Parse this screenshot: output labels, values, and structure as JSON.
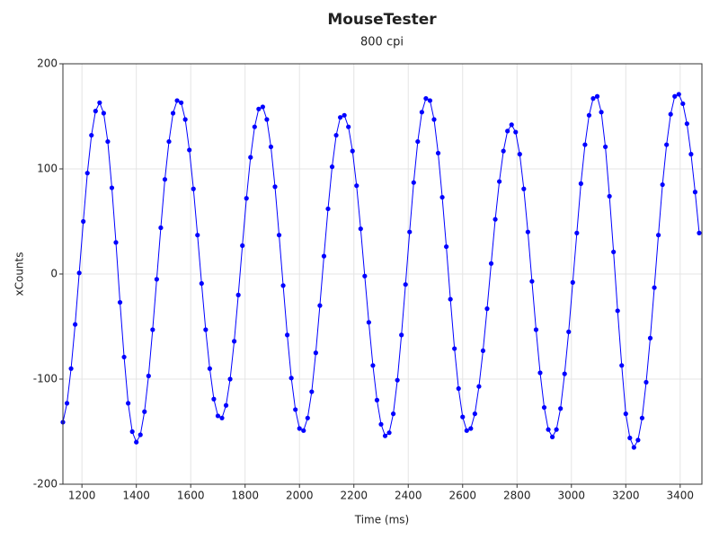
{
  "chart_data": {
    "type": "scatter",
    "title": "MouseTester",
    "subtitle": "800 cpi",
    "x_label": "Time (ms)",
    "y_label": "xCounts",
    "color": "#0000ff",
    "line": true,
    "grid": true,
    "xlim": [
      1130,
      3480
    ],
    "xticks": [
      1200,
      1400,
      1600,
      1800,
      2000,
      2200,
      2400,
      2600,
      2800,
      3000,
      3200,
      3400
    ],
    "ylim": [
      -200,
      200
    ],
    "yticks": [
      -200,
      -100,
      0,
      100,
      200
    ],
    "x": [
      1130,
      1145,
      1160,
      1175,
      1190,
      1205,
      1220,
      1235,
      1250,
      1265,
      1280,
      1295,
      1310,
      1325,
      1340,
      1355,
      1370,
      1385,
      1400,
      1415,
      1430,
      1445,
      1460,
      1475,
      1490,
      1505,
      1520,
      1535,
      1550,
      1565,
      1580,
      1595,
      1610,
      1625,
      1640,
      1655,
      1670,
      1685,
      1700,
      1715,
      1730,
      1745,
      1760,
      1775,
      1790,
      1805,
      1820,
      1835,
      1850,
      1865,
      1880,
      1895,
      1910,
      1925,
      1940,
      1955,
      1970,
      1985,
      2000,
      2015,
      2030,
      2045,
      2060,
      2075,
      2090,
      2105,
      2120,
      2135,
      2150,
      2165,
      2180,
      2195,
      2210,
      2225,
      2240,
      2255,
      2270,
      2285,
      2300,
      2315,
      2330,
      2345,
      2360,
      2375,
      2390,
      2405,
      2420,
      2435,
      2450,
      2465,
      2480,
      2495,
      2510,
      2525,
      2540,
      2555,
      2570,
      2585,
      2600,
      2615,
      2630,
      2645,
      2660,
      2675,
      2690,
      2705,
      2720,
      2735,
      2750,
      2765,
      2780,
      2795,
      2810,
      2825,
      2840,
      2855,
      2870,
      2885,
      2900,
      2915,
      2930,
      2945,
      2960,
      2975,
      2990,
      3005,
      3020,
      3035,
      3050,
      3065,
      3080,
      3095,
      3110,
      3125,
      3140,
      3155,
      3170,
      3185,
      3200,
      3215,
      3230,
      3245,
      3260,
      3275,
      3290,
      3305,
      3320,
      3335,
      3350,
      3365,
      3380,
      3395,
      3410,
      3425,
      3440,
      3455,
      3470
    ],
    "values": [
      -141,
      -123,
      -90,
      -48,
      1,
      50,
      96,
      132,
      155,
      163,
      153,
      126,
      82,
      30,
      -27,
      -79,
      -123,
      -150,
      -160,
      -153,
      -131,
      -97,
      -53,
      -5,
      44,
      90,
      126,
      153,
      165,
      163,
      147,
      118,
      81,
      37,
      -9,
      -53,
      -90,
      -119,
      -135,
      -137,
      -125,
      -100,
      -64,
      -20,
      27,
      72,
      111,
      140,
      157,
      159,
      147,
      121,
      83,
      37,
      -11,
      -58,
      -99,
      -129,
      -147,
      -149,
      -137,
      -112,
      -75,
      -30,
      17,
      62,
      102,
      132,
      149,
      151,
      140,
      117,
      84,
      43,
      -2,
      -46,
      -87,
      -120,
      -143,
      -154,
      -151,
      -133,
      -101,
      -58,
      -10,
      40,
      87,
      126,
      154,
      167,
      165,
      147,
      115,
      73,
      26,
      -24,
      -71,
      -109,
      -136,
      -149,
      -147,
      -133,
      -107,
      -73,
      -33,
      10,
      52,
      88,
      117,
      136,
      142,
      135,
      114,
      81,
      40,
      -7,
      -53,
      -94,
      -127,
      -148,
      -155,
      -148,
      -128,
      -95,
      -55,
      -8,
      39,
      86,
      123,
      151,
      167,
      169,
      154,
      121,
      74,
      21,
      -35,
      -87,
      -133,
      -156,
      -165,
      -158,
      -137,
      -103,
      -61,
      -13,
      37,
      85,
      123,
      152,
      169,
      171,
      162,
      143,
      114,
      78,
      39
    ]
  }
}
